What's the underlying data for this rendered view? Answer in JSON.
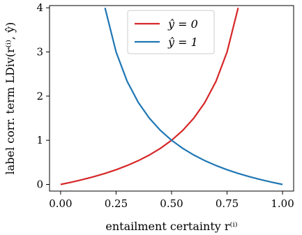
{
  "chart_data": {
    "type": "line",
    "xlabel": "entailment certainty r⁽ⁱ⁾",
    "ylabel": "label corr. term LDiv(r⁽ⁱ⁾, ŷ)",
    "xlim": [
      -0.05,
      1.05
    ],
    "ylim": [
      -0.15,
      4.05
    ],
    "x_ticks": [
      "0.00",
      "0.25",
      "0.50",
      "0.75",
      "1.00"
    ],
    "y_ticks": [
      "0",
      "1",
      "2",
      "3",
      "4"
    ],
    "grid": false,
    "legend_position": "top-center",
    "series": [
      {
        "name": "ŷ = 0",
        "color": "#d62728",
        "x": [
          0.0,
          0.05,
          0.1,
          0.15,
          0.2,
          0.25,
          0.3,
          0.35,
          0.4,
          0.45,
          0.5,
          0.55,
          0.6,
          0.65,
          0.7,
          0.75,
          0.8
        ],
        "y": [
          0.0,
          0.053,
          0.111,
          0.176,
          0.25,
          0.333,
          0.429,
          0.538,
          0.667,
          0.818,
          1.0,
          1.222,
          1.5,
          1.857,
          2.333,
          3.0,
          4.0
        ]
      },
      {
        "name": "ŷ = 1",
        "color": "#1f77b4",
        "x": [
          0.2,
          0.25,
          0.3,
          0.35,
          0.4,
          0.45,
          0.5,
          0.55,
          0.6,
          0.65,
          0.7,
          0.75,
          0.8,
          0.85,
          0.9,
          0.95,
          1.0
        ],
        "y": [
          4.0,
          3.0,
          2.333,
          1.857,
          1.5,
          1.222,
          1.0,
          0.818,
          0.667,
          0.538,
          0.429,
          0.333,
          0.25,
          0.176,
          0.111,
          0.053,
          0.0
        ]
      }
    ]
  }
}
